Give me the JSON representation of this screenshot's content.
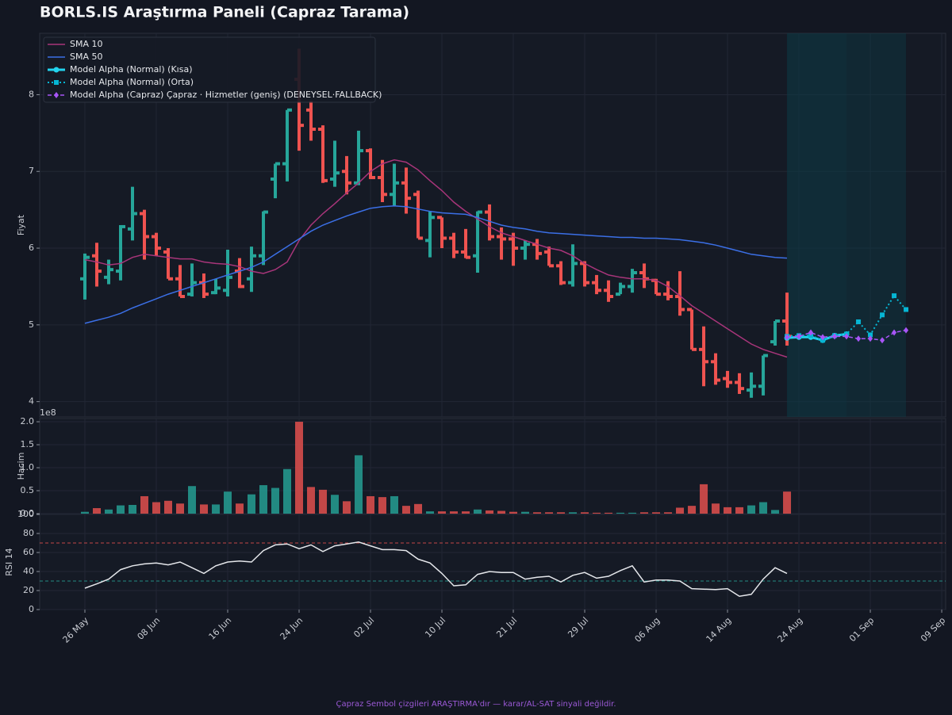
{
  "chart_data": [
    {
      "type": "ohlc",
      "title": "BORLS.IS Araştırma Paneli (Capraz Tarama)",
      "ylabel": "Fiyat",
      "up_color": "#26a69a",
      "down_color": "#ef5350",
      "open": [
        5.6,
        5.9,
        5.62,
        5.7,
        6.25,
        6.45,
        6.15,
        5.95,
        5.6,
        5.4,
        5.55,
        5.42,
        5.45,
        5.7,
        5.6,
        5.9,
        6.9,
        7.1,
        8.2,
        7.8,
        7.55,
        6.9,
        7.0,
        6.85,
        7.27,
        6.92,
        6.7,
        6.85,
        6.7,
        6.1,
        6.4,
        6.13,
        5.95,
        5.9,
        6.47,
        6.15,
        6.12,
        6.0,
        6.05,
        5.95,
        5.77,
        5.55,
        5.8,
        5.55,
        5.45,
        5.4,
        5.5,
        5.68,
        5.58,
        5.4,
        5.37,
        5.2,
        4.68,
        4.52,
        4.3,
        4.25,
        4.15,
        4.2,
        4.78,
        5.05
      ],
      "high": [
        5.93,
        6.07,
        5.85,
        6.3,
        6.8,
        6.5,
        6.2,
        6.0,
        5.78,
        5.8,
        5.67,
        5.6,
        5.98,
        5.87,
        6.02,
        6.48,
        7.1,
        7.8,
        8.6,
        7.92,
        7.6,
        7.4,
        7.2,
        7.53,
        7.3,
        7.15,
        7.1,
        7.05,
        6.75,
        6.48,
        6.4,
        6.2,
        6.25,
        6.48,
        6.57,
        6.27,
        6.2,
        6.1,
        6.12,
        6.02,
        5.83,
        6.05,
        5.83,
        5.65,
        5.58,
        5.55,
        5.73,
        5.8,
        5.6,
        5.57,
        5.7,
        5.2,
        4.98,
        4.63,
        4.4,
        4.37,
        4.38,
        4.6,
        5.05,
        5.42
      ],
      "low": [
        5.33,
        5.5,
        5.53,
        5.58,
        6.1,
        5.85,
        5.9,
        5.6,
        5.37,
        5.37,
        5.35,
        5.4,
        5.37,
        5.48,
        5.43,
        5.78,
        6.65,
        6.87,
        7.27,
        7.4,
        6.85,
        6.8,
        6.7,
        6.82,
        6.9,
        6.6,
        6.55,
        6.45,
        6.13,
        5.88,
        6.0,
        5.87,
        5.87,
        5.68,
        6.1,
        5.85,
        5.77,
        5.85,
        5.85,
        5.77,
        5.52,
        5.5,
        5.5,
        5.4,
        5.3,
        5.4,
        5.42,
        5.48,
        5.4,
        5.32,
        5.12,
        4.68,
        4.2,
        4.22,
        4.18,
        4.1,
        4.05,
        4.08,
        4.73,
        4.73
      ],
      "close": [
        5.88,
        5.7,
        5.72,
        6.28,
        6.45,
        6.15,
        6.0,
        5.6,
        5.37,
        5.55,
        5.4,
        5.48,
        5.62,
        5.5,
        5.9,
        6.47,
        7.1,
        7.8,
        7.6,
        7.55,
        6.88,
        6.98,
        6.85,
        7.27,
        6.92,
        6.7,
        6.85,
        6.65,
        6.13,
        6.4,
        6.13,
        5.95,
        5.88,
        6.47,
        6.15,
        6.12,
        6.0,
        6.05,
        5.93,
        5.77,
        5.55,
        5.8,
        5.55,
        5.45,
        5.37,
        5.5,
        5.68,
        5.6,
        5.4,
        5.37,
        5.2,
        4.68,
        4.52,
        4.28,
        4.25,
        4.17,
        4.2,
        4.6,
        5.05,
        4.85
      ],
      "series": [
        {
          "name": "SMA 10",
          "color": "#a8357a",
          "values": [
            5.85,
            5.82,
            5.78,
            5.8,
            5.88,
            5.92,
            5.9,
            5.88,
            5.86,
            5.86,
            5.82,
            5.8,
            5.79,
            5.76,
            5.7,
            5.67,
            5.72,
            5.82,
            6.1,
            6.3,
            6.45,
            6.58,
            6.72,
            6.85,
            7.0,
            7.1,
            7.15,
            7.12,
            7.02,
            6.88,
            6.75,
            6.6,
            6.48,
            6.38,
            6.28,
            6.2,
            6.15,
            6.1,
            6.05,
            6.0,
            5.97,
            5.9,
            5.8,
            5.72,
            5.65,
            5.62,
            5.6,
            5.6,
            5.58,
            5.5,
            5.38,
            5.25,
            5.15,
            5.05,
            4.95,
            4.85,
            4.75,
            4.68,
            4.63,
            4.58
          ]
        },
        {
          "name": "SMA 50",
          "color": "#3b6fe6",
          "values": [
            5.02,
            5.06,
            5.1,
            5.15,
            5.22,
            5.28,
            5.34,
            5.4,
            5.45,
            5.5,
            5.55,
            5.6,
            5.65,
            5.7,
            5.75,
            5.82,
            5.92,
            6.02,
            6.12,
            6.22,
            6.3,
            6.36,
            6.42,
            6.47,
            6.52,
            6.54,
            6.55,
            6.54,
            6.51,
            6.48,
            6.46,
            6.45,
            6.44,
            6.4,
            6.35,
            6.3,
            6.27,
            6.25,
            6.22,
            6.2,
            6.19,
            6.18,
            6.17,
            6.16,
            6.15,
            6.14,
            6.14,
            6.13,
            6.13,
            6.12,
            6.11,
            6.09,
            6.07,
            6.04,
            6.0,
            5.96,
            5.92,
            5.9,
            5.88,
            5.87
          ]
        },
        {
          "name": "Model Alpha (Normal) (Kısa)",
          "color": "#22d3ee",
          "dash": "solid",
          "marker": "circle",
          "width": 3,
          "x": [
            59,
            60,
            61,
            62,
            63,
            64
          ],
          "values": [
            4.83,
            4.84,
            4.84,
            4.8,
            4.86,
            4.88
          ]
        },
        {
          "name": "Model Alpha (Normal) (Orta)",
          "color": "#06b6d4",
          "dash": "dotted",
          "marker": "square",
          "width": 2,
          "x": [
            59,
            60,
            61,
            62,
            63,
            64,
            65,
            66,
            67,
            68,
            69
          ],
          "values": [
            4.85,
            4.86,
            4.86,
            4.8,
            4.86,
            4.88,
            5.04,
            4.87,
            5.13,
            5.38,
            5.2
          ]
        },
        {
          "name": "Model Alpha (Capraz) Çapraz · Hizmetler (geniş) (DENEYSEL·FALLBACK)",
          "color": "#a855f7",
          "dash": "dashed",
          "marker": "diamond",
          "width": 1.5,
          "x": [
            59,
            60,
            61,
            62,
            63,
            64,
            65,
            66,
            67,
            68,
            69
          ],
          "values": [
            4.84,
            4.85,
            4.9,
            4.84,
            4.85,
            4.85,
            4.82,
            4.82,
            4.8,
            4.9,
            4.93
          ]
        }
      ],
      "xlim": [
        -3.8,
        72.33
      ],
      "ylim": [
        3.8,
        8.8
      ],
      "yticks": [
        4,
        5,
        6,
        7,
        8
      ],
      "grid": true,
      "legend": "upper left"
    },
    {
      "type": "bar",
      "ylabel": "Hacim",
      "offset_label": "1e8",
      "values": [
        0.04,
        0.12,
        0.09,
        0.18,
        0.19,
        0.38,
        0.25,
        0.28,
        0.22,
        0.6,
        0.2,
        0.2,
        0.48,
        0.22,
        0.42,
        0.62,
        0.56,
        0.97,
        2.0,
        0.58,
        0.52,
        0.41,
        0.27,
        1.27,
        0.38,
        0.36,
        0.38,
        0.17,
        0.21,
        0.05,
        0.05,
        0.05,
        0.05,
        0.09,
        0.07,
        0.06,
        0.04,
        0.04,
        0.03,
        0.03,
        0.03,
        0.03,
        0.03,
        0.02,
        0.02,
        0.02,
        0.02,
        0.03,
        0.03,
        0.03,
        0.13,
        0.17,
        0.64,
        0.22,
        0.14,
        0.14,
        0.18,
        0.25,
        0.08,
        0.48
      ],
      "xlim": [
        -3.8,
        72.33
      ],
      "ylim": [
        0,
        2.07
      ],
      "yticks": [
        {
          "value": 0,
          "label": "0.0"
        },
        0.5,
        {
          "value": 1,
          "label": "1.0"
        },
        1.5,
        {
          "value": 2,
          "label": "2.0"
        }
      ],
      "grid": true
    },
    {
      "type": "line",
      "ylabel": "RSI 14",
      "color": "#e5e7eb",
      "values": [
        22.5,
        27,
        32,
        42,
        46,
        48,
        49,
        47,
        50,
        44,
        38,
        46,
        50,
        51,
        50,
        62,
        68,
        69,
        64,
        68,
        61,
        67,
        69,
        71,
        67,
        63,
        63,
        62,
        53,
        49,
        38,
        25,
        26,
        37,
        40,
        39,
        39,
        32,
        34,
        35,
        29,
        36,
        39,
        33,
        35,
        41,
        46,
        29,
        31,
        31,
        30,
        22,
        21.5,
        21,
        22,
        14,
        16,
        32,
        44,
        38
      ],
      "levels": [
        {
          "value": 70,
          "color": "#ef5350"
        },
        {
          "value": 30,
          "color": "#26a69a"
        }
      ],
      "xlim": [
        -3.8,
        72.33
      ],
      "ylim": [
        0,
        100
      ],
      "yticks": [
        0,
        20,
        40,
        60,
        80,
        100
      ],
      "grid": true,
      "xticks": [
        {
          "value": 0,
          "label": "26 May"
        },
        {
          "value": 6,
          "label": "08 Jun"
        },
        {
          "value": 12,
          "label": "16 Jun"
        },
        {
          "value": 18,
          "label": "24 Jun"
        },
        {
          "value": 24,
          "label": "02 Jul"
        },
        {
          "value": 30,
          "label": "10 Jul"
        },
        {
          "value": 36,
          "label": "21 Jul"
        },
        {
          "value": 42,
          "label": "29 Jul"
        },
        {
          "value": 48,
          "label": "06 Aug"
        },
        {
          "value": 54,
          "label": "14 Aug"
        },
        {
          "value": 60,
          "label": "24 Aug"
        },
        {
          "value": 66,
          "label": "01 Sep"
        },
        {
          "value": 72,
          "label": "09 Sep"
        }
      ]
    }
  ],
  "footer": "Çapraz Sembol çizgileri ARAŞTIRMA'dır — karar/AL-SAT sinyali değildir."
}
